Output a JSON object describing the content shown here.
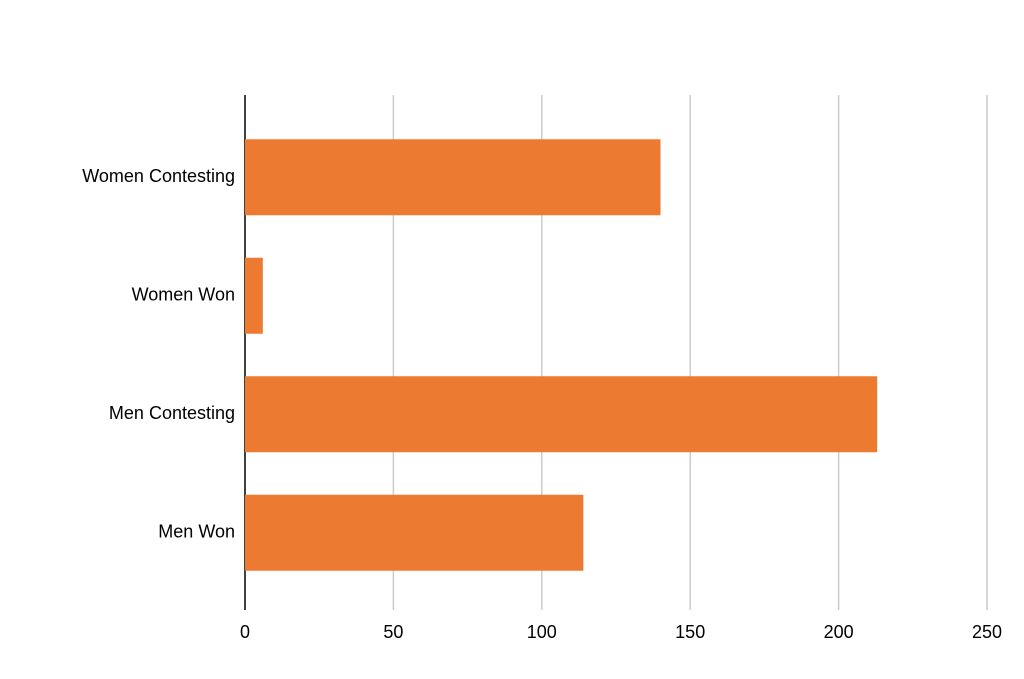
{
  "chart_data": {
    "type": "bar",
    "orientation": "horizontal",
    "categories": [
      "Women Contesting",
      "Women Won",
      "Men Contesting",
      "Men Won"
    ],
    "values": [
      140,
      6,
      213,
      114
    ],
    "color": "#ed7a31",
    "xlim": [
      0,
      250
    ],
    "xticks": [
      0,
      50,
      100,
      150,
      200,
      250
    ],
    "grid": true
  }
}
